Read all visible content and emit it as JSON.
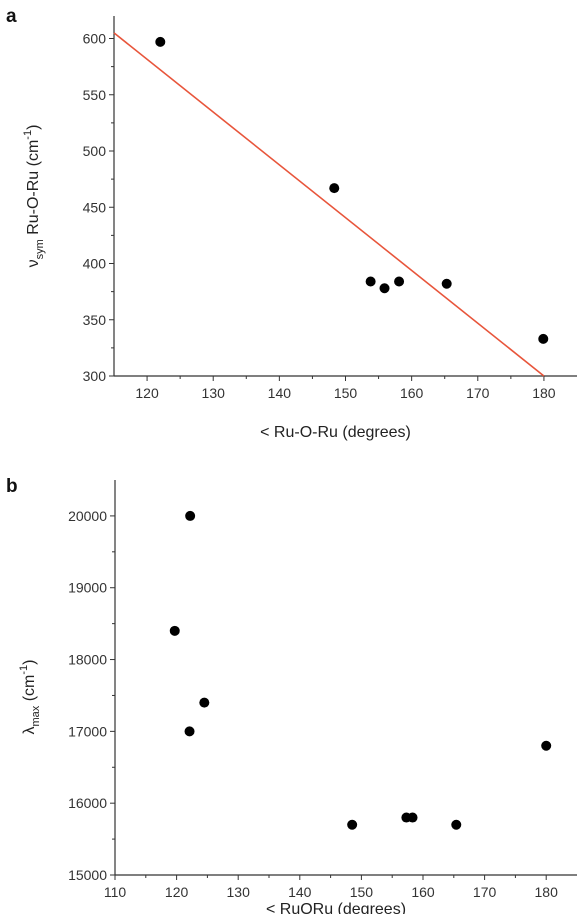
{
  "chart_data": [
    {
      "panel": "a",
      "type": "scatter",
      "xlabel": "< Ru-O-Ru (degrees)",
      "ylabel_parts": [
        "ν",
        "sym",
        " Ru-O-Ru (cm",
        "-1",
        ")"
      ],
      "xlim": [
        115,
        185
      ],
      "ylim": [
        300,
        620
      ],
      "xticks": [
        120,
        130,
        140,
        150,
        160,
        170,
        180
      ],
      "yticks": [
        300,
        350,
        400,
        450,
        500,
        550,
        600
      ],
      "points": [
        {
          "x": 122,
          "y": 597
        },
        {
          "x": 148.3,
          "y": 467
        },
        {
          "x": 153.8,
          "y": 384
        },
        {
          "x": 155.9,
          "y": 378
        },
        {
          "x": 158.1,
          "y": 384
        },
        {
          "x": 165.3,
          "y": 382
        },
        {
          "x": 179.9,
          "y": 333
        }
      ],
      "fit_line": {
        "x": [
          115,
          180
        ],
        "y": [
          605,
          300
        ],
        "color": "#e8553b"
      },
      "marker_color": "#000000",
      "grid": false
    },
    {
      "panel": "b",
      "type": "scatter",
      "xlabel": "< RuORu (degrees)",
      "ylabel_parts": [
        "λ",
        "max",
        " (cm",
        "-1",
        ")"
      ],
      "xlim": [
        110,
        185
      ],
      "ylim": [
        15000,
        20500
      ],
      "xticks": [
        110,
        120,
        130,
        140,
        150,
        160,
        170,
        180
      ],
      "yticks": [
        15000,
        16000,
        17000,
        18000,
        19000,
        20000
      ],
      "points": [
        {
          "x": 122.2,
          "y": 20000
        },
        {
          "x": 119.7,
          "y": 18400
        },
        {
          "x": 124.5,
          "y": 17400
        },
        {
          "x": 122.1,
          "y": 17000
        },
        {
          "x": 148.5,
          "y": 15700
        },
        {
          "x": 157.3,
          "y": 15800
        },
        {
          "x": 158.3,
          "y": 15800
        },
        {
          "x": 165.4,
          "y": 15700
        },
        {
          "x": 180,
          "y": 16800
        }
      ],
      "marker_color": "#000000",
      "grid": false
    }
  ]
}
